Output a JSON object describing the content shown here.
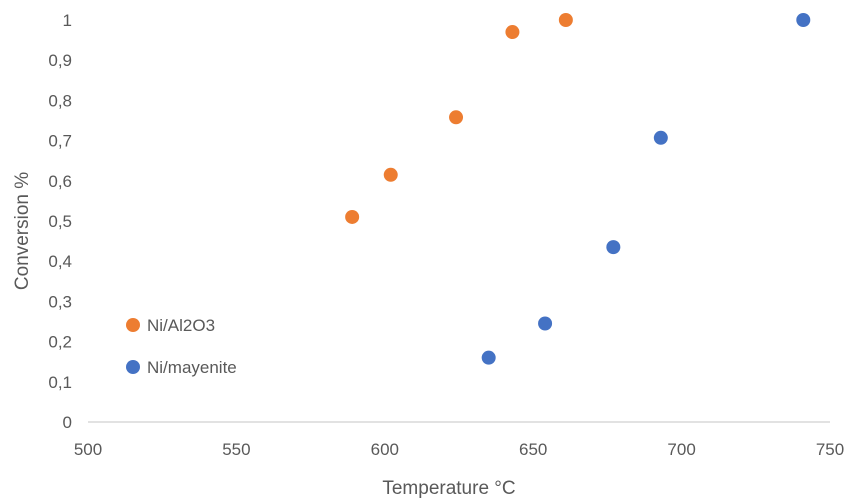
{
  "chart_data": {
    "type": "scatter",
    "title": "",
    "xlabel": "Temperature °C",
    "ylabel": "Conversion %",
    "xlim": [
      500,
      750
    ],
    "ylim": [
      0,
      1
    ],
    "x_ticks": [
      "500",
      "550",
      "600",
      "650",
      "700",
      "750"
    ],
    "y_ticks": [
      "0",
      "0,1",
      "0,2",
      "0,3",
      "0,4",
      "0,5",
      "0,6",
      "0,7",
      "0,8",
      "0,9",
      "1"
    ],
    "x_tick_values": [
      500,
      550,
      600,
      650,
      700,
      750
    ],
    "y_tick_values": [
      0,
      0.1,
      0.2,
      0.3,
      0.4,
      0.5,
      0.6,
      0.7,
      0.8,
      0.9,
      1
    ],
    "grid": false,
    "legend_position": "left",
    "series": [
      {
        "name": "Ni/Al2O3",
        "color": "#ED7D31",
        "points": [
          {
            "x": 589,
            "y": 0.51
          },
          {
            "x": 602,
            "y": 0.615
          },
          {
            "x": 624,
            "y": 0.758
          },
          {
            "x": 643,
            "y": 0.97
          },
          {
            "x": 661,
            "y": 1.0
          }
        ]
      },
      {
        "name": "Ni/mayenite",
        "color": "#4472C4",
        "points": [
          {
            "x": 635,
            "y": 0.16
          },
          {
            "x": 654,
            "y": 0.245
          },
          {
            "x": 677,
            "y": 0.435
          },
          {
            "x": 693,
            "y": 0.707
          },
          {
            "x": 741,
            "y": 1.0
          }
        ]
      }
    ]
  }
}
